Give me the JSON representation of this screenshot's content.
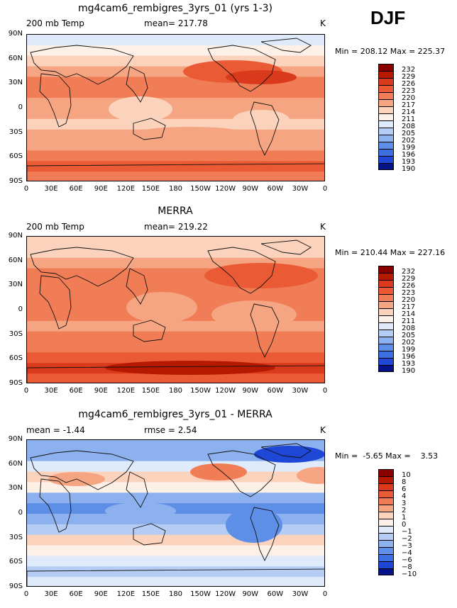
{
  "season": "DJF",
  "panels": [
    {
      "title": "mg4cam6_rembigres_3yrs_01 (yrs 1-3)",
      "left_label": "200 mb Temp",
      "center_label": "mean= 217.78",
      "units": "K",
      "minmax": "Min = 208.12 Max = 225.37",
      "levels": [
        "232",
        "229",
        "226",
        "223",
        "220",
        "217",
        "214",
        "211",
        "208",
        "205",
        "202",
        "199",
        "196",
        "193",
        "190"
      ]
    },
    {
      "title": "MERRA",
      "left_label": "200 mb Temp",
      "center_label": "mean= 219.22",
      "units": "K",
      "minmax": "Min = 210.44 Max = 227.16",
      "levels": [
        "232",
        "229",
        "226",
        "223",
        "220",
        "217",
        "214",
        "211",
        "208",
        "205",
        "202",
        "199",
        "196",
        "193",
        "190"
      ]
    },
    {
      "title": "mg4cam6_rembigres_3yrs_01 - MERRA",
      "left_label": "mean =  -1.44",
      "center_label": "rmse =    2.54",
      "units": "K",
      "minmax": "Min =  -5.65 Max =    3.53",
      "levels": [
        "10",
        "8",
        "6",
        "4",
        "3",
        "2",
        "1",
        "0",
        "−1",
        "−2",
        "−3",
        "−4",
        "−6",
        "−8",
        "−10"
      ]
    }
  ],
  "lat_ticks": [
    "90N",
    "60N",
    "30N",
    "0",
    "30S",
    "60S",
    "90S"
  ],
  "lon_ticks": [
    "0",
    "30E",
    "60E",
    "90E",
    "120E",
    "150E",
    "180",
    "150W",
    "120W",
    "90W",
    "60W",
    "30W",
    "0"
  ],
  "colors": {
    "scale": [
      "#8a0000",
      "#b51a00",
      "#d93a1c",
      "#ea5a34",
      "#f07d55",
      "#f6a583",
      "#fbd2bc",
      "#fdf0e6",
      "#dfeafa",
      "#b5cdf5",
      "#8db1ef",
      "#5e8fe6",
      "#3b6fe0",
      "#1f47d6",
      "#05128a"
    ]
  }
}
